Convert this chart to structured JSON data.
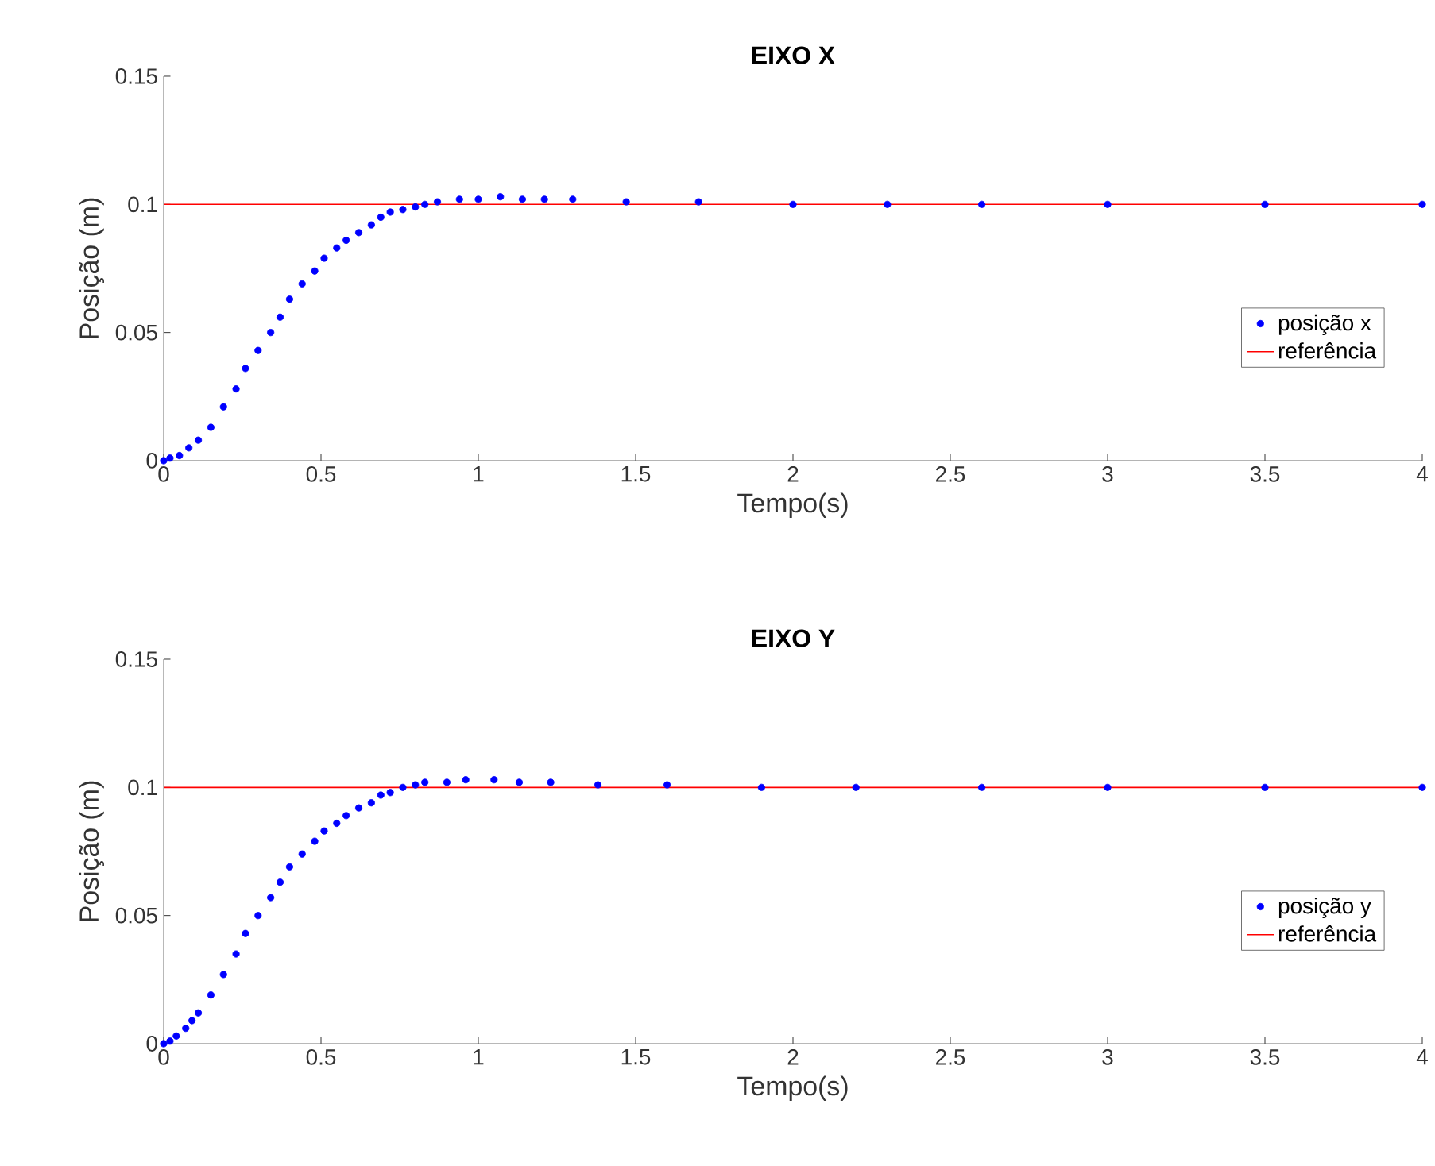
{
  "chart_data": [
    {
      "type": "scatter",
      "title": "EIXO X",
      "xlabel": "Tempo(s)",
      "ylabel": "Posição (m)",
      "xlim": [
        0,
        4
      ],
      "xticks": [
        0,
        0.5,
        1,
        1.5,
        2,
        2.5,
        3,
        3.5,
        4
      ],
      "ylim": [
        0,
        0.15
      ],
      "yticks": [
        0,
        0.05,
        0.1,
        0.15
      ],
      "legend": "right",
      "grid": false,
      "series": [
        {
          "name": "posição x",
          "marker": "circle",
          "color": "#0000ff",
          "x": [
            0,
            0.02,
            0.05,
            0.08,
            0.11,
            0.15,
            0.19,
            0.23,
            0.26,
            0.3,
            0.34,
            0.37,
            0.4,
            0.44,
            0.48,
            0.51,
            0.55,
            0.58,
            0.62,
            0.66,
            0.69,
            0.72,
            0.76,
            0.8,
            0.83,
            0.87,
            0.94,
            1.0,
            1.07,
            1.14,
            1.21,
            1.3,
            1.47,
            1.7,
            2.0,
            2.3,
            2.6,
            3.0,
            3.5,
            4.0
          ],
          "values": [
            0,
            0.001,
            0.002,
            0.005,
            0.008,
            0.013,
            0.021,
            0.028,
            0.036,
            0.043,
            0.05,
            0.056,
            0.063,
            0.069,
            0.074,
            0.079,
            0.083,
            0.086,
            0.089,
            0.092,
            0.095,
            0.097,
            0.098,
            0.099,
            0.1,
            0.101,
            0.102,
            0.102,
            0.103,
            0.102,
            0.102,
            0.102,
            0.101,
            0.101,
            0.1,
            0.1,
            0.1,
            0.1,
            0.1,
            0.1
          ]
        },
        {
          "name": "referência",
          "type": "line",
          "marker": "none",
          "color": "#ff0000",
          "x": [
            0,
            4
          ],
          "values": [
            0.1,
            0.1
          ]
        }
      ]
    },
    {
      "type": "scatter",
      "title": "EIXO Y",
      "xlabel": "Tempo(s)",
      "ylabel": "Posição (m)",
      "xlim": [
        0,
        4
      ],
      "xticks": [
        0,
        0.5,
        1,
        1.5,
        2,
        2.5,
        3,
        3.5,
        4
      ],
      "ylim": [
        0,
        0.15
      ],
      "yticks": [
        0,
        0.05,
        0.1,
        0.15
      ],
      "legend": "right",
      "grid": false,
      "series": [
        {
          "name": "posição y",
          "marker": "circle",
          "color": "#0000ff",
          "x": [
            0,
            0.02,
            0.04,
            0.07,
            0.09,
            0.11,
            0.15,
            0.19,
            0.23,
            0.26,
            0.3,
            0.34,
            0.37,
            0.4,
            0.44,
            0.48,
            0.51,
            0.55,
            0.58,
            0.62,
            0.66,
            0.69,
            0.72,
            0.76,
            0.8,
            0.83,
            0.9,
            0.96,
            1.05,
            1.13,
            1.23,
            1.38,
            1.6,
            1.9,
            2.2,
            2.6,
            3.0,
            3.5,
            4.0
          ],
          "values": [
            0,
            0.001,
            0.003,
            0.006,
            0.009,
            0.012,
            0.019,
            0.027,
            0.035,
            0.043,
            0.05,
            0.057,
            0.063,
            0.069,
            0.074,
            0.079,
            0.083,
            0.086,
            0.089,
            0.092,
            0.094,
            0.097,
            0.098,
            0.1,
            0.101,
            0.102,
            0.102,
            0.103,
            0.103,
            0.102,
            0.102,
            0.101,
            0.101,
            0.1,
            0.1,
            0.1,
            0.1,
            0.1,
            0.1
          ]
        },
        {
          "name": "referência",
          "type": "line",
          "marker": "none",
          "color": "#ff0000",
          "x": [
            0,
            4
          ],
          "values": [
            0.1,
            0.1
          ]
        }
      ]
    }
  ]
}
